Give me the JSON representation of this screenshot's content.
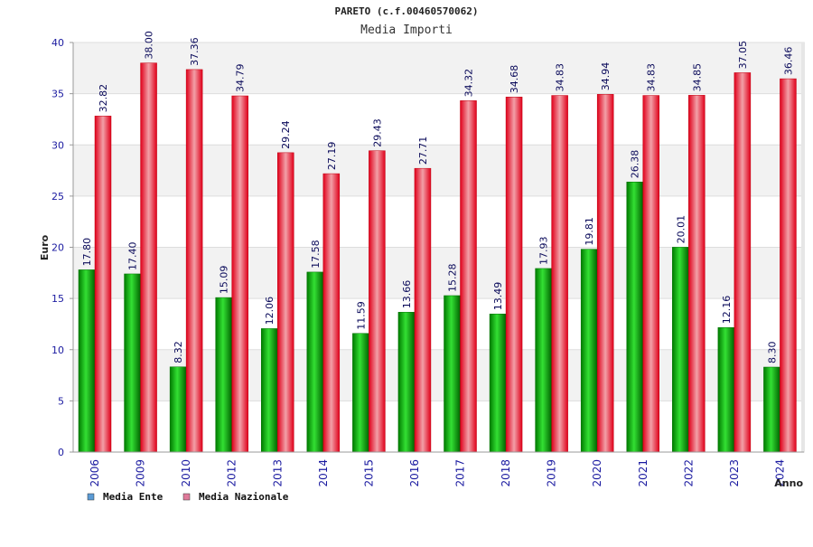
{
  "chart_data": {
    "type": "bar",
    "title": "PARETO (c.f.00460570062)",
    "subtitle": "Media Importi",
    "xlabel": "Anno",
    "ylabel": "Euro",
    "ylim": [
      0,
      40
    ],
    "yticks": [
      0,
      5,
      10,
      15,
      20,
      25,
      30,
      35,
      40
    ],
    "categories": [
      "2006",
      "2009",
      "2010",
      "2012",
      "2013",
      "2014",
      "2015",
      "2016",
      "2017",
      "2018",
      "2019",
      "2020",
      "2021",
      "2022",
      "2023",
      "2024"
    ],
    "series": [
      {
        "name": "Media Ente",
        "color": "#00b000",
        "values": [
          17.8,
          17.4,
          8.32,
          15.09,
          12.06,
          17.58,
          11.59,
          13.66,
          15.28,
          13.49,
          17.93,
          19.81,
          26.38,
          20.01,
          12.16,
          8.3
        ],
        "labels": [
          "17.80",
          "17.40",
          "8.32",
          "15.09",
          "12.06",
          "17.58",
          "11.59",
          "13.66",
          "15.28",
          "13.49",
          "17.93",
          "19.81",
          "26.38",
          "20.01",
          "12.16",
          "8.30"
        ]
      },
      {
        "name": "Media Nazionale",
        "color": "#e8001a",
        "values": [
          32.82,
          38.0,
          37.36,
          34.79,
          29.24,
          27.19,
          29.43,
          27.71,
          34.32,
          34.68,
          34.83,
          34.94,
          34.83,
          34.85,
          37.05,
          36.46
        ],
        "labels": [
          "32.82",
          "38.00",
          "37.36",
          "34.79",
          "29.24",
          "27.19",
          "29.43",
          "27.71",
          "34.32",
          "34.68",
          "34.83",
          "34.94",
          "34.83",
          "34.85",
          "37.05",
          "36.46"
        ]
      }
    ],
    "legend": [
      {
        "label": "Media Ente",
        "color": "#5b9bd5"
      },
      {
        "label": "Media Nazionale",
        "color": "#e07a9a"
      }
    ],
    "legend_position": "bottom-left",
    "grid": true
  }
}
